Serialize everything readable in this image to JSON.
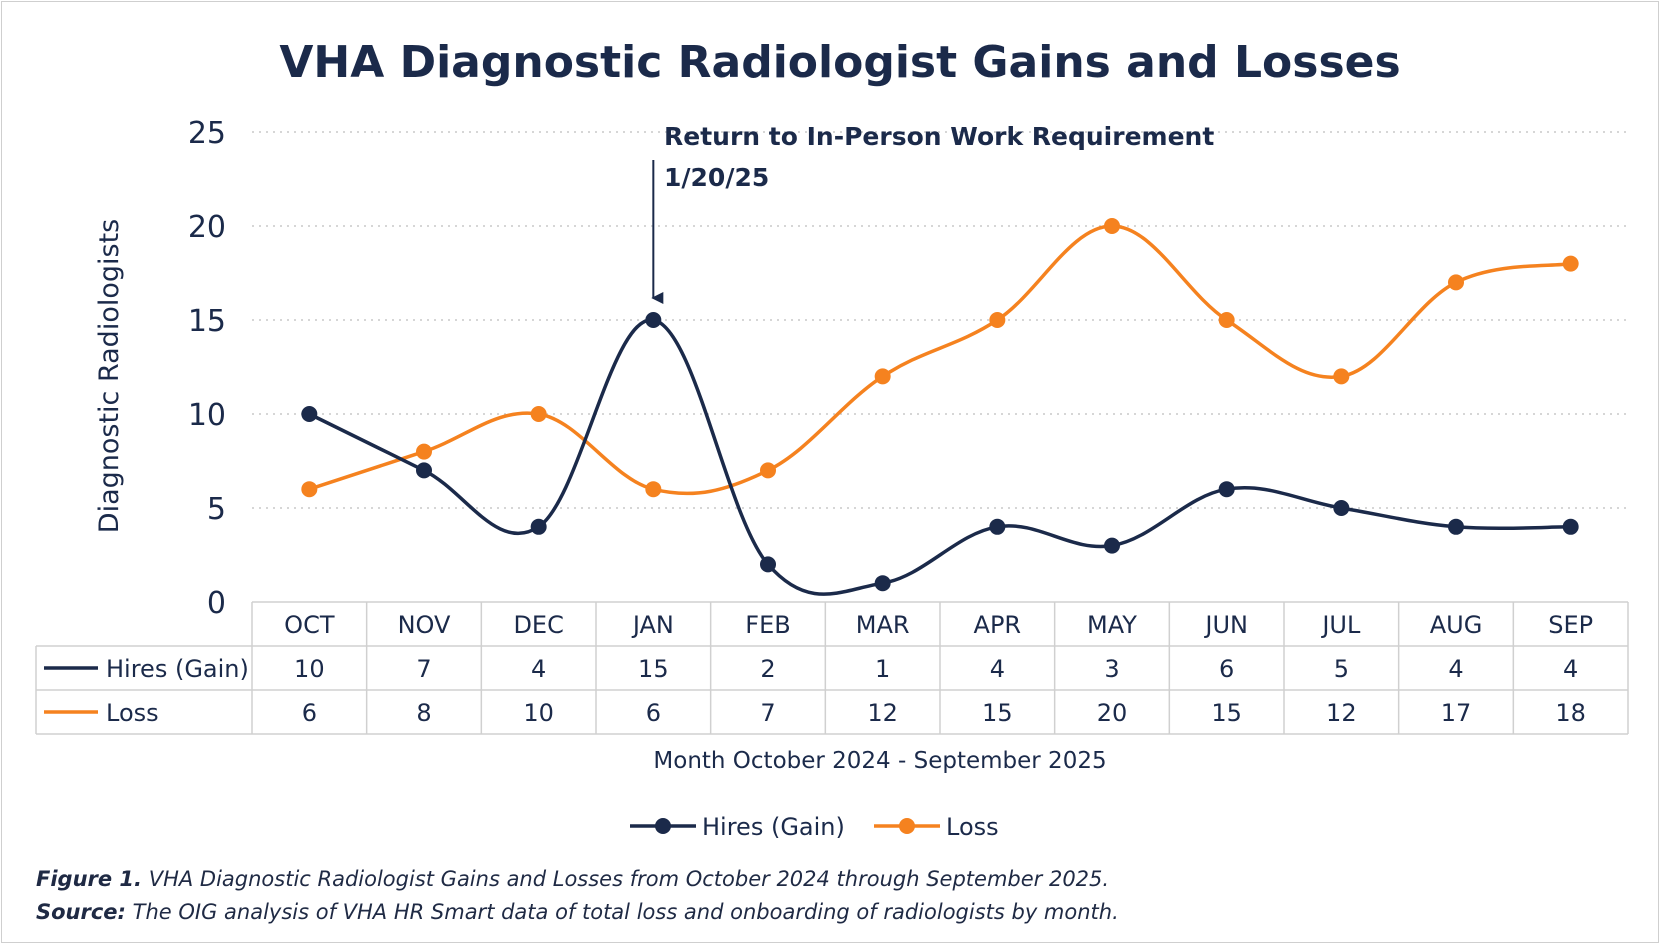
{
  "chart_data": {
    "type": "line",
    "title": "VHA Diagnostic Radiologist Gains and Losses",
    "ylabel": "Diagnostic Radiologists",
    "xlabel": "Month October 2024 - September 2025",
    "ylim": [
      0,
      25
    ],
    "yticks": [
      0,
      5,
      10,
      15,
      20,
      25
    ],
    "grid": "horizontal dotted",
    "categories": [
      "OCT",
      "NOV",
      "DEC",
      "JAN",
      "FEB",
      "MAR",
      "APR",
      "MAY",
      "JUN",
      "JUL",
      "AUG",
      "SEP"
    ],
    "series": [
      {
        "name": "Hires (Gain)",
        "color": "#1b2a4a",
        "values": [
          10,
          7,
          4,
          15,
          2,
          1,
          4,
          3,
          6,
          5,
          4,
          4
        ]
      },
      {
        "name": "Loss",
        "color": "#f5821f",
        "values": [
          6,
          8,
          10,
          6,
          7,
          12,
          15,
          20,
          15,
          12,
          17,
          18
        ]
      }
    ],
    "annotation": {
      "line1": "Return to In-Person Work Requirement",
      "line2": "1/20/25",
      "category": "JAN",
      "value": 15
    },
    "legend": "bottom-center",
    "data_table": true
  },
  "caption": {
    "figure_label": "Figure 1.",
    "figure_text": " VHA Diagnostic Radiologist Gains and Losses from October 2024 through September 2025.",
    "source_label": "Source:",
    "source_text": " The OIG analysis of VHA HR Smart data of total loss and onboarding of radiologists by month."
  }
}
